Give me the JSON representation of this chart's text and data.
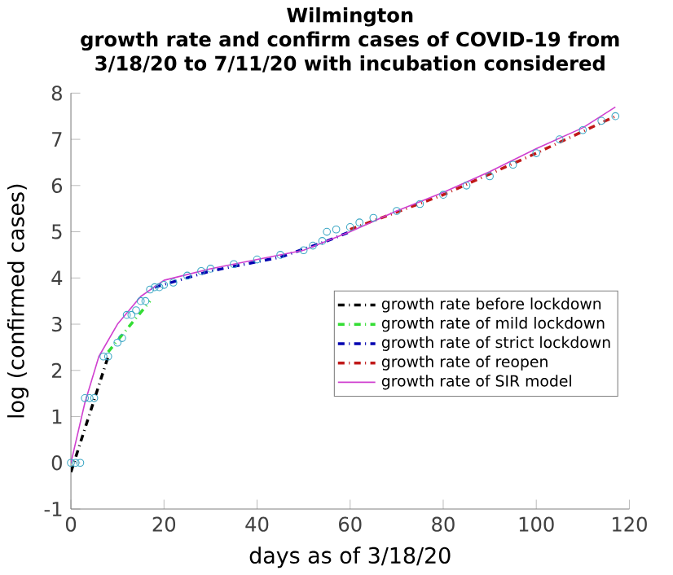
{
  "chart_data": {
    "type": "line",
    "title": "Wilmington\ngrowth rate and confirm cases of COVID-19 from\n3/18/20 to 7/11/20 with incubation considered",
    "xlabel": "days as of 3/18/20",
    "ylabel": "log (confirmed cases)",
    "xlim": [
      0,
      120
    ],
    "ylim": [
      -1,
      8
    ],
    "xticks": [
      0,
      20,
      40,
      60,
      80,
      100,
      120
    ],
    "yticks": [
      -1,
      0,
      1,
      2,
      3,
      4,
      5,
      6,
      7,
      8
    ],
    "grid": false,
    "legend": "right",
    "series": [
      {
        "type": "scatter",
        "marker": "circle",
        "color": "#3aa6c4",
        "x": [
          0,
          1,
          2,
          3,
          4,
          5,
          7,
          8,
          10,
          11,
          12,
          13,
          14,
          15,
          16,
          17,
          18,
          19,
          20,
          22,
          25,
          28,
          30,
          35,
          40,
          45,
          50,
          52,
          54,
          55,
          57,
          60,
          62,
          65,
          70,
          75,
          80,
          85,
          90,
          95,
          100,
          105,
          110,
          114,
          117
        ],
        "values": [
          0,
          0,
          0,
          1.4,
          1.4,
          1.4,
          2.3,
          2.3,
          2.6,
          2.7,
          3.2,
          3.2,
          3.3,
          3.5,
          3.5,
          3.75,
          3.8,
          3.8,
          3.85,
          3.9,
          4.05,
          4.15,
          4.2,
          4.3,
          4.4,
          4.5,
          4.6,
          4.7,
          4.8,
          5.0,
          5.05,
          5.1,
          5.2,
          5.3,
          5.45,
          5.6,
          5.8,
          6.0,
          6.2,
          6.45,
          6.7,
          7.0,
          7.2,
          7.4,
          7.5
        ]
      },
      {
        "type": "line",
        "name": "growth rate before lockdown",
        "color": "#000000",
        "line_style": "dashed",
        "x": [
          0,
          8
        ],
        "values": [
          -0.2,
          2.3
        ]
      },
      {
        "type": "line",
        "name": "growth rate of mild lockdown",
        "color": "#33dd33",
        "line_style": "dashed",
        "x": [
          8,
          17
        ],
        "values": [
          2.4,
          3.5
        ]
      },
      {
        "type": "line",
        "name": "growth rate of strict lockdown",
        "color": "#0000b0",
        "line_style": "dashed",
        "x": [
          18,
          30,
          45,
          55,
          60
        ],
        "values": [
          3.8,
          4.15,
          4.45,
          4.8,
          5.0
        ]
      },
      {
        "type": "line",
        "name": "growth rate of reopen",
        "color": "#c01818",
        "line_style": "dashed",
        "x": [
          60,
          80,
          100,
          117
        ],
        "values": [
          5.05,
          5.8,
          6.7,
          7.5
        ]
      },
      {
        "type": "line",
        "name": "growth rate of SIR model",
        "color": "#d040d0",
        "line_style": "solid",
        "x": [
          0,
          3,
          6,
          10,
          15,
          20,
          30,
          40,
          50,
          60,
          70,
          80,
          90,
          100,
          110,
          117
        ],
        "values": [
          0,
          1.3,
          2.3,
          3.0,
          3.6,
          3.95,
          4.2,
          4.4,
          4.6,
          5.0,
          5.45,
          5.85,
          6.3,
          6.8,
          7.25,
          7.7
        ]
      }
    ]
  }
}
